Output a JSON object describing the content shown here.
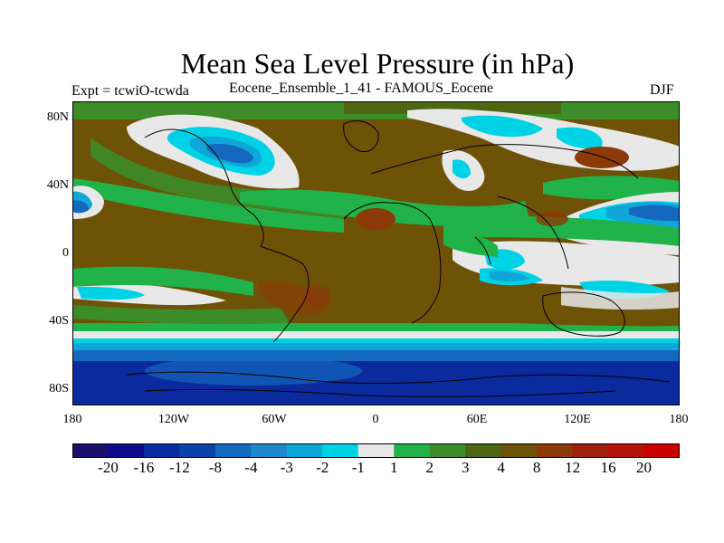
{
  "header": {
    "title": "Mean Sea Level Pressure (in hPa)",
    "experiment": "Expt = tcwiO-tcwda",
    "ensemble": "Eocene_Ensemble_1_41 - FAMOUS_Eocene",
    "season": "DJF"
  },
  "axes": {
    "lat_labels": [
      "80N",
      "40N",
      "0",
      "40S",
      "80S"
    ],
    "lon_labels": [
      "180",
      "120W",
      "60W",
      "0",
      "60E",
      "120E",
      "180"
    ]
  },
  "colorbar": {
    "labels": [
      "-20",
      "-16",
      "-12",
      "-8",
      "-4",
      "-3",
      "-2",
      "-1",
      "1",
      "2",
      "3",
      "4",
      "8",
      "12",
      "16",
      "20"
    ],
    "colors": [
      "#1a0f6e",
      "#0d0d8c",
      "#0a2a9e",
      "#0a44aa",
      "#1468bd",
      "#1e88cc",
      "#0fa6d8",
      "#00d2e6",
      "#e8e8e8",
      "#22b24a",
      "#3c8c28",
      "#4d6612",
      "#6e5208",
      "#8c3a08",
      "#a02010",
      "#b4140a",
      "#cc0000"
    ]
  },
  "map_colors": {
    "deep_blue": "#0a2a9e",
    "mid_blue": "#1468bd",
    "cyan": "#00d2e6",
    "light_blue": "#0fa6d8",
    "white": "#e8e8e8",
    "green": "#22b24a",
    "dark_green": "#3c8c28",
    "olive": "#4d6612",
    "brown": "#6e5208",
    "rust": "#8c3a08",
    "coast": "#000000"
  }
}
